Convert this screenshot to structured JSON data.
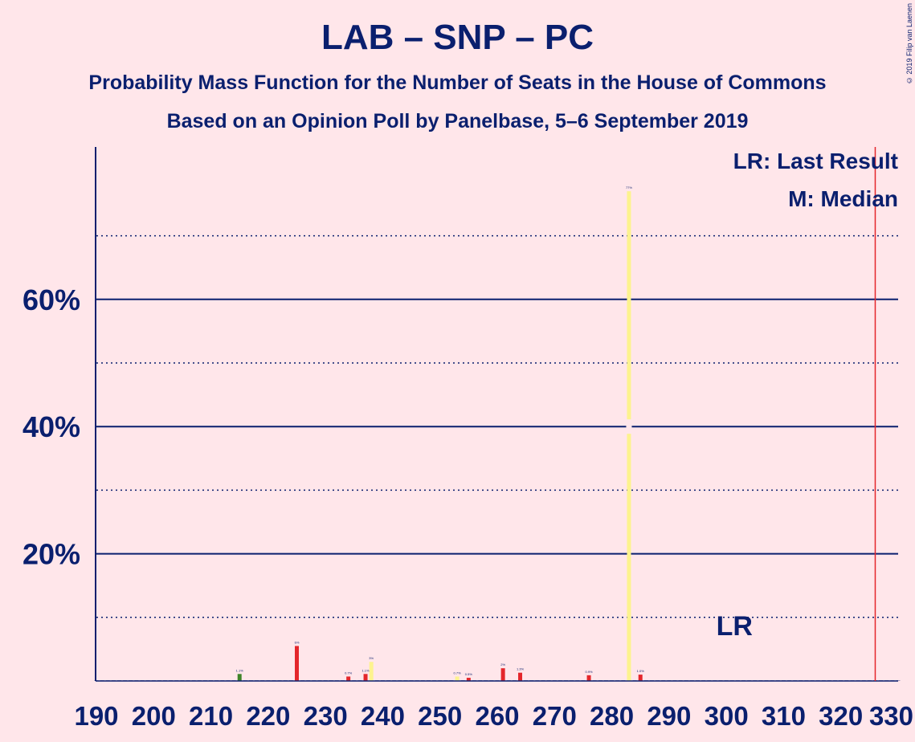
{
  "title": "LAB – SNP – PC",
  "subtitle": "Probability Mass Function for the Number of Seats in the House of Commons",
  "subtitle2": "Based on an Opinion Poll by Panelbase, 5–6 September 2019",
  "copyright": "© 2019 Filip van Laenen",
  "legend": {
    "lr": "LR: Last Result",
    "m": "M: Median"
  },
  "lr_marker": "LR",
  "colors": {
    "background": "#ffe6ea",
    "text": "#0a1f6e",
    "lab": "#e4262b",
    "snp": "#fdf38e",
    "pc": "#3f8428",
    "majority_line": "#e4262b"
  },
  "chart_data": {
    "type": "bar",
    "xlim": [
      190,
      330
    ],
    "ylim": [
      0,
      84
    ],
    "x_ticks": [
      190,
      200,
      210,
      220,
      230,
      240,
      250,
      260,
      270,
      280,
      290,
      300,
      310,
      320,
      330
    ],
    "y_ticks_labeled": [
      "20%",
      "40%",
      "60%"
    ],
    "y_ticks_labeled_values": [
      20,
      40,
      60
    ],
    "y_gridlines_solid": [
      20,
      40,
      60
    ],
    "y_gridlines_dotted": [
      10,
      30,
      50,
      70
    ],
    "last_result_seat": 301,
    "median_seat": 283,
    "majority_seat": 326,
    "bars": [
      {
        "seat": 215,
        "value": 1.1,
        "color": "pc",
        "label": "1.1%"
      },
      {
        "seat": 225,
        "value": 5.5,
        "color": "lab",
        "label": "6%"
      },
      {
        "seat": 234,
        "value": 0.7,
        "color": "lab",
        "label": "0.7%"
      },
      {
        "seat": 237,
        "value": 1.1,
        "color": "lab",
        "label": "1.1%"
      },
      {
        "seat": 238,
        "value": 3,
        "color": "snp",
        "label": "3%"
      },
      {
        "seat": 253,
        "value": 0.7,
        "color": "snp",
        "label": "0.7%"
      },
      {
        "seat": 255,
        "value": 0.5,
        "color": "lab",
        "label": "0.5%"
      },
      {
        "seat": 261,
        "value": 2,
        "color": "lab",
        "label": "2%"
      },
      {
        "seat": 264,
        "value": 1.3,
        "color": "lab",
        "label": "1.3%"
      },
      {
        "seat": 276,
        "value": 0.9,
        "color": "lab",
        "label": "0.9%"
      },
      {
        "seat": 283,
        "value": 77,
        "color": "snp",
        "label": "77%"
      },
      {
        "seat": 285,
        "value": 1,
        "color": "lab",
        "label": "1.0%"
      }
    ]
  }
}
